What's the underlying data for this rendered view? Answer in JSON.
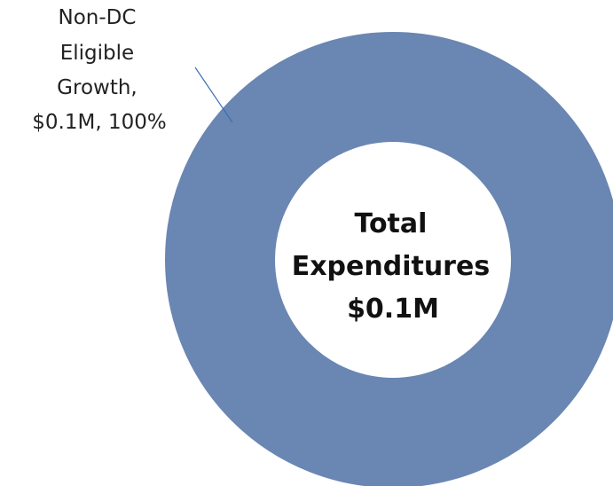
{
  "chart_data": {
    "type": "pie",
    "donut": true,
    "categories": [
      "Non-DC Eligible Growth"
    ],
    "values": [
      0.1
    ],
    "value_unit": "$M",
    "percentages": [
      100
    ],
    "slice_colors": [
      "#6a86b2"
    ],
    "legend": "none",
    "data_labels": [
      {
        "lines": [
          "Non-DC",
          "Eligible",
          "Growth,",
          "$0.1M, 100%"
        ]
      }
    ],
    "center_label": {
      "lines": [
        "Total",
        "Expenditures",
        "$0.1M"
      ]
    }
  }
}
